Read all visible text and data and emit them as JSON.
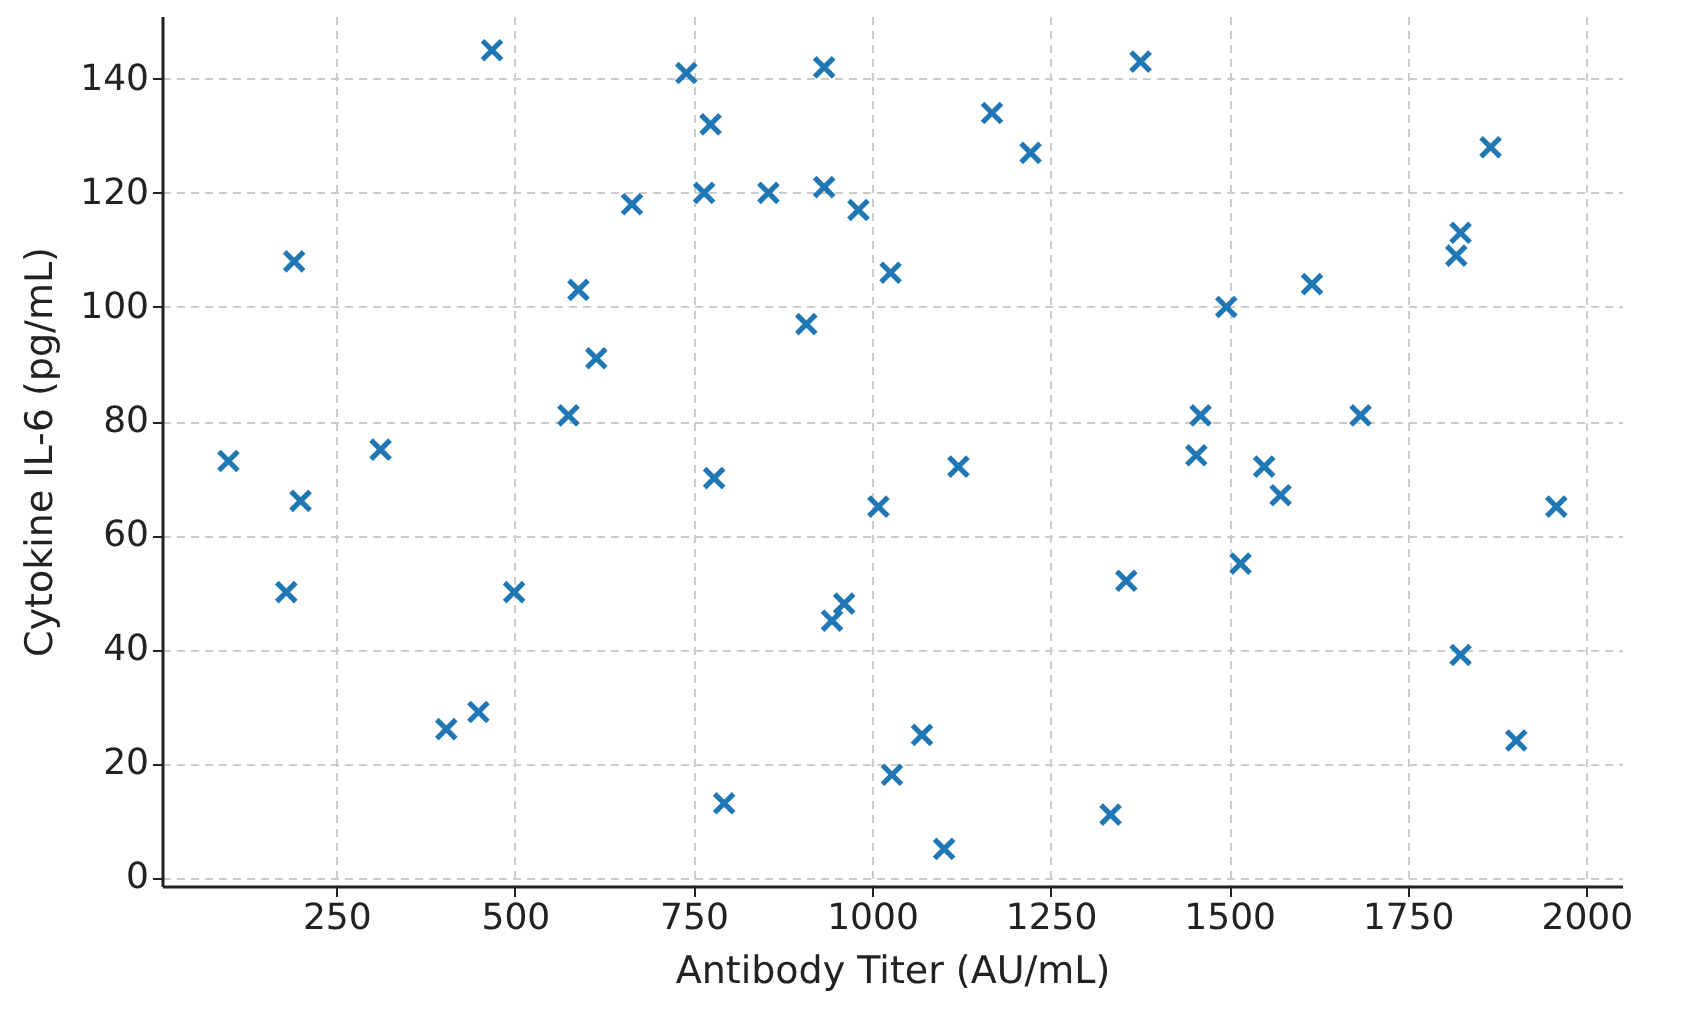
{
  "chart_data": {
    "type": "scatter",
    "xlabel": "Antibody Titer (AU/mL)",
    "ylabel": "Cytokine IL-6 (pg/mL)",
    "x": [
      99,
      191,
      180,
      200,
      312,
      404,
      449,
      468,
      499,
      575,
      589,
      614,
      664,
      740,
      774,
      765,
      779,
      793,
      855,
      908,
      933,
      933,
      981,
      1026,
      1009,
      961,
      944,
      1028,
      1070,
      1101,
      1121,
      1168,
      1222,
      1334,
      1356,
      1376,
      1454,
      1460,
      1496,
      1516,
      1549,
      1572,
      1616,
      1684,
      1818,
      1824,
      1824,
      1866,
      1902,
      1958
    ],
    "series": [
      {
        "color": "#1f77b4",
        "values": [
          73,
          108,
          50,
          66,
          75,
          26,
          29,
          145,
          50,
          81,
          103,
          91,
          118,
          141,
          132,
          120,
          70,
          13,
          120,
          97,
          142,
          121,
          117,
          106,
          65,
          48,
          45,
          18,
          25,
          5,
          72,
          134,
          127,
          11,
          52,
          143,
          74,
          81,
          100,
          55,
          72,
          67,
          104,
          81,
          109,
          113,
          39,
          128,
          24,
          65
        ]
      }
    ],
    "xlim": [
      6,
      2050
    ],
    "ylim": [
      -1.5,
      151
    ],
    "xticks": [
      250,
      500,
      750,
      1000,
      1250,
      1500,
      1750,
      2000
    ],
    "yticks": [
      0,
      20,
      40,
      60,
      80,
      100,
      120,
      140
    ],
    "grid": true,
    "marker": "cross"
  }
}
